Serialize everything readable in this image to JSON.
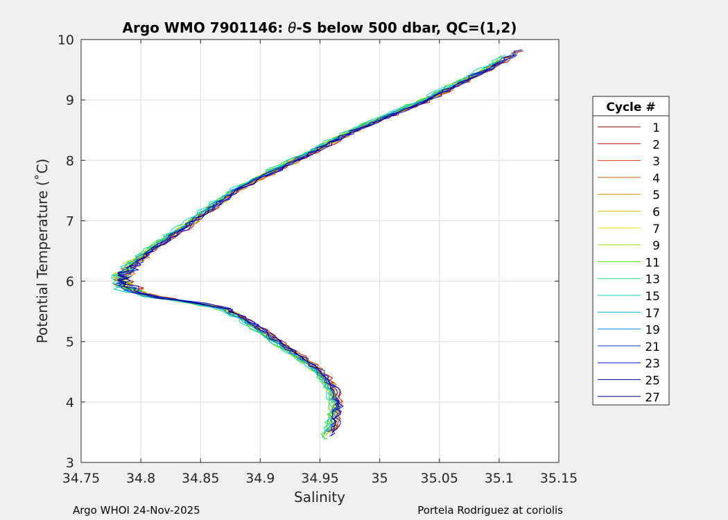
{
  "figure": {
    "footer_left": "Argo WHOI 24-Nov-2025",
    "footer_right": "Portela Rodriguez at coriolis"
  },
  "chart_data": {
    "type": "line",
    "title_prefix": "Argo WMO 7901146: ",
    "title_theta": "θ",
    "title_suffix": "-S below 500 dbar,  QC=(1,2)",
    "xlabel": "Salinity",
    "ylabel": "Potential Temperature (˚C)",
    "xlim": [
      34.75,
      35.15
    ],
    "ylim": [
      3,
      10
    ],
    "xticks": [
      34.75,
      34.8,
      34.85,
      34.9,
      34.95,
      35,
      35.05,
      35.1,
      35.15
    ],
    "xtick_labels": [
      "34.75",
      "34.8",
      "34.85",
      "34.9",
      "34.95",
      "35",
      "35.05",
      "35.1",
      "35.15"
    ],
    "yticks": [
      3,
      4,
      5,
      6,
      7,
      8,
      9,
      10
    ],
    "ytick_labels": [
      "3",
      "4",
      "5",
      "6",
      "7",
      "8",
      "9",
      "10"
    ],
    "grid": true,
    "legend": {
      "title": "Cycle #",
      "placement": "outside-right"
    },
    "base_profile": {
      "temperature": [
        9.85,
        9.5,
        9.0,
        8.5,
        8.0,
        7.5,
        7.0,
        6.6,
        6.3,
        6.1,
        6.0,
        5.9,
        5.75,
        5.65,
        5.55,
        5.4,
        5.2,
        5.0,
        4.8,
        4.6,
        4.4,
        4.2,
        4.0,
        3.8,
        3.6,
        3.45
      ],
      "salinity": [
        35.12,
        35.09,
        35.04,
        34.98,
        34.93,
        34.88,
        34.845,
        34.815,
        34.795,
        34.787,
        34.785,
        34.788,
        34.81,
        34.845,
        34.87,
        34.885,
        34.9,
        34.915,
        34.93,
        34.945,
        34.955,
        34.962,
        34.965,
        34.964,
        34.962,
        34.958
      ]
    },
    "series": [
      {
        "name": "1",
        "color": "#7f0000",
        "offset": 0.0
      },
      {
        "name": "2",
        "color": "#c40000",
        "offset": 0.003
      },
      {
        "name": "3",
        "color": "#d33a00",
        "offset": -0.002
      },
      {
        "name": "4",
        "color": "#d86000",
        "offset": 0.002
      },
      {
        "name": "5",
        "color": "#e08a00",
        "offset": -0.001
      },
      {
        "name": "6",
        "color": "#e6c000",
        "offset": 0.001
      },
      {
        "name": "7",
        "color": "#e8e000",
        "offset": -0.004
      },
      {
        "name": "9",
        "color": "#9ad800",
        "offset": -0.003
      },
      {
        "name": "11",
        "color": "#50e000",
        "offset": -0.005
      },
      {
        "name": "13",
        "color": "#20d880",
        "offset": -0.004
      },
      {
        "name": "15",
        "color": "#00d8c0",
        "offset": -0.006
      },
      {
        "name": "17",
        "color": "#00b8e0",
        "offset": -0.003
      },
      {
        "name": "19",
        "color": "#0080e8",
        "offset": -0.002
      },
      {
        "name": "21",
        "color": "#0040e8",
        "offset": 0.0
      },
      {
        "name": "23",
        "color": "#0010d8",
        "offset": 0.002
      },
      {
        "name": "25",
        "color": "#0000b0",
        "offset": 0.001
      },
      {
        "name": "27",
        "color": "#000080",
        "offset": -0.001
      }
    ]
  }
}
